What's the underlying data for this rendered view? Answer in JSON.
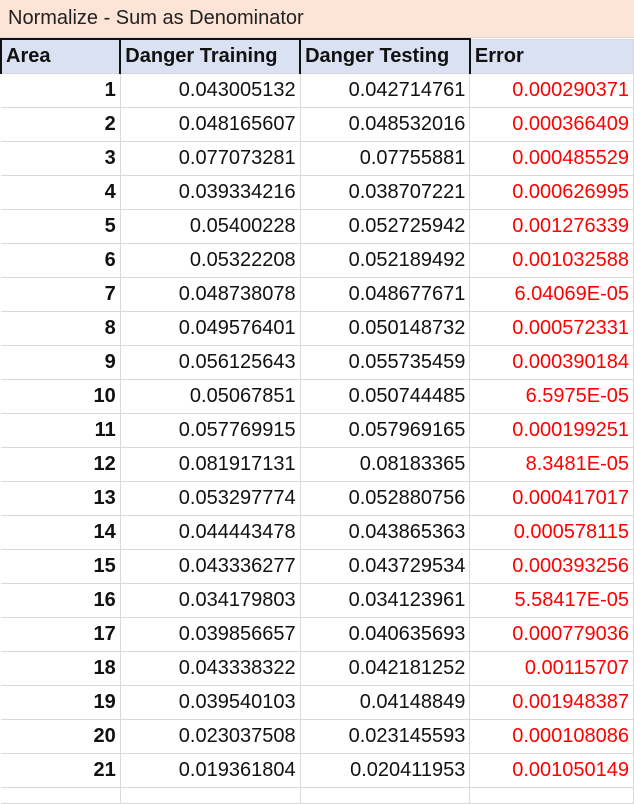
{
  "title": "Normalize - Sum as Denominator",
  "headers": {
    "area": "Area",
    "train": "Danger Training",
    "test": "Danger Testing",
    "error": "Error"
  },
  "rows": [
    {
      "area": "1",
      "train": "0.043005132",
      "test": "0.042714761",
      "error": "0.000290371"
    },
    {
      "area": "2",
      "train": "0.048165607",
      "test": "0.048532016",
      "error": "0.000366409"
    },
    {
      "area": "3",
      "train": "0.077073281",
      "test": "0.07755881",
      "error": "0.000485529"
    },
    {
      "area": "4",
      "train": "0.039334216",
      "test": "0.038707221",
      "error": "0.000626995"
    },
    {
      "area": "5",
      "train": "0.05400228",
      "test": "0.052725942",
      "error": "0.001276339"
    },
    {
      "area": "6",
      "train": "0.05322208",
      "test": "0.052189492",
      "error": "0.001032588"
    },
    {
      "area": "7",
      "train": "0.048738078",
      "test": "0.048677671",
      "error": "6.04069E-05"
    },
    {
      "area": "8",
      "train": "0.049576401",
      "test": "0.050148732",
      "error": "0.000572331"
    },
    {
      "area": "9",
      "train": "0.056125643",
      "test": "0.055735459",
      "error": "0.000390184"
    },
    {
      "area": "10",
      "train": "0.05067851",
      "test": "0.050744485",
      "error": "6.5975E-05"
    },
    {
      "area": "11",
      "train": "0.057769915",
      "test": "0.057969165",
      "error": "0.000199251"
    },
    {
      "area": "12",
      "train": "0.081917131",
      "test": "0.08183365",
      "error": "8.3481E-05"
    },
    {
      "area": "13",
      "train": "0.053297774",
      "test": "0.052880756",
      "error": "0.000417017"
    },
    {
      "area": "14",
      "train": "0.044443478",
      "test": "0.043865363",
      "error": "0.000578115"
    },
    {
      "area": "15",
      "train": "0.043336277",
      "test": "0.043729534",
      "error": "0.000393256"
    },
    {
      "area": "16",
      "train": "0.034179803",
      "test": "0.034123961",
      "error": "5.58417E-05"
    },
    {
      "area": "17",
      "train": "0.039856657",
      "test": "0.040635693",
      "error": "0.000779036"
    },
    {
      "area": "18",
      "train": "0.043338322",
      "test": "0.042181252",
      "error": "0.00115707"
    },
    {
      "area": "19",
      "train": "0.039540103",
      "test": "0.04148849",
      "error": "0.001948387"
    },
    {
      "area": "20",
      "train": "0.023037508",
      "test": "0.023145593",
      "error": "0.000108086"
    },
    {
      "area": "21",
      "train": "0.019361804",
      "test": "0.020411953",
      "error": "0.001050149"
    }
  ],
  "colors": {
    "title_fill": "#fce4d6",
    "header_fill": "#d9e1f2",
    "error_text": "#ff0000"
  }
}
